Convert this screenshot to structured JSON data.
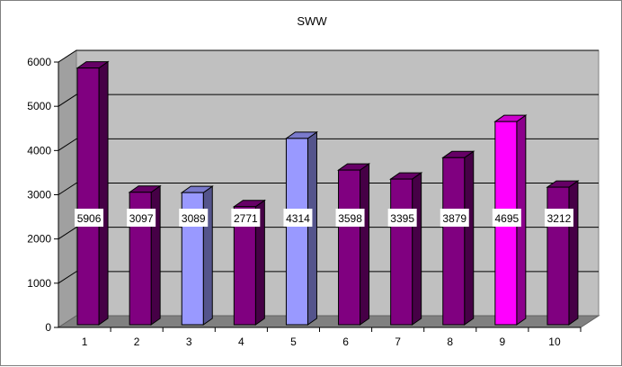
{
  "chart_data": {
    "type": "bar",
    "title": "SWW",
    "xlabel": "",
    "ylabel": "",
    "categories": [
      "1",
      "2",
      "3",
      "4",
      "5",
      "6",
      "7",
      "8",
      "9",
      "10"
    ],
    "values": [
      5906,
      3097,
      3089,
      2771,
      4314,
      3598,
      3395,
      3879,
      4695,
      3212
    ],
    "data_labels": [
      "5906",
      "3097",
      "3089",
      "2771",
      "4314",
      "3598",
      "3395",
      "3879",
      "4695",
      "3212"
    ],
    "ylim": [
      0,
      6000
    ],
    "yticks": [
      "0",
      "1000",
      "2000",
      "3000",
      "4000",
      "5000",
      "6000"
    ],
    "grid": true,
    "style": "3d-column",
    "colors": {
      "default": "#800080",
      "bar3": "#9999ff",
      "bar5": "#9999ff",
      "bar9": "#ff00ff",
      "wall": "#c0c0c0",
      "floor": "#808080"
    },
    "bar_colors": [
      "#800080",
      "#800080",
      "#9999ff",
      "#800080",
      "#9999ff",
      "#800080",
      "#800080",
      "#800080",
      "#ff00ff",
      "#800080"
    ]
  }
}
